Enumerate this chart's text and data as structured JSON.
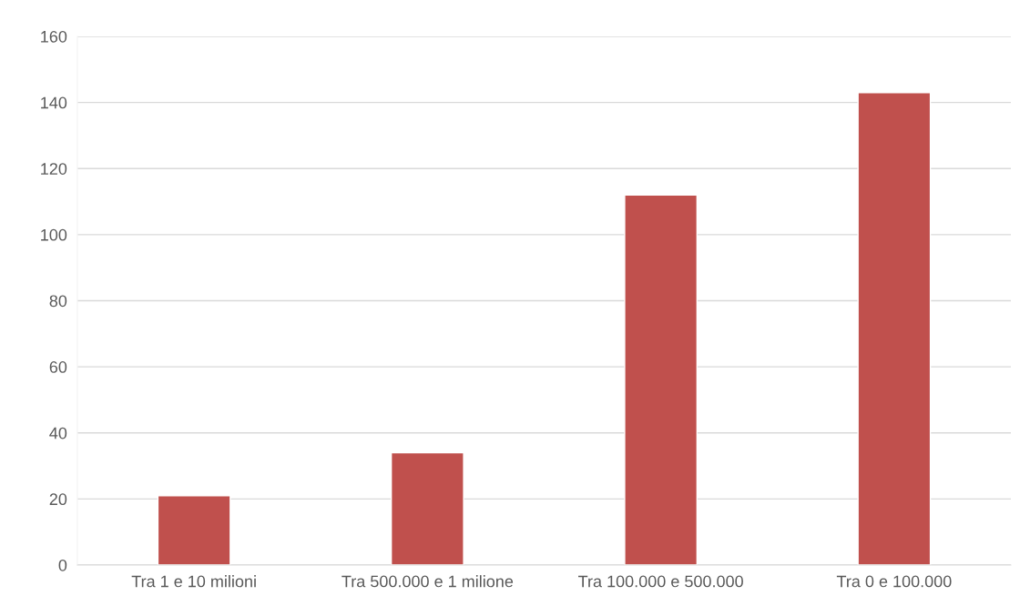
{
  "chart_data": {
    "type": "bar",
    "categories": [
      "Tra 1 e 10 milioni",
      "Tra 500.000 e 1 milione",
      "Tra 100.000 e 500.000",
      "Tra 0 e 100.000"
    ],
    "values": [
      21,
      34,
      112,
      143
    ],
    "color": "#c0504d",
    "ylim": [
      0,
      160
    ],
    "yticks": [
      0,
      20,
      40,
      60,
      80,
      100,
      120,
      140,
      160
    ],
    "grid": "y",
    "legend": false
  }
}
